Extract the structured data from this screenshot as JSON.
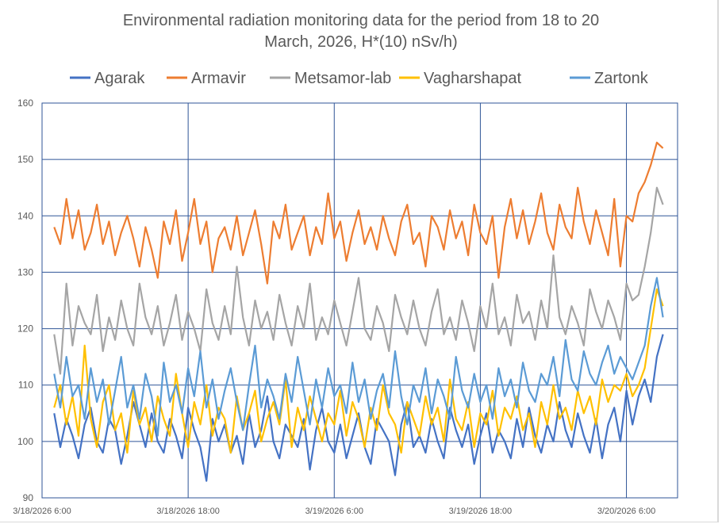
{
  "chart_data": {
    "type": "line",
    "title": "Environmental radiation monitoring data for the period from 18 to 20",
    "title_line2": "March, 2026, H*(10) nSv/h)",
    "xlabel": "",
    "ylabel": "",
    "ylim": [
      90,
      160
    ],
    "yticks": [
      "90",
      "100",
      "110",
      "120",
      "130",
      "140",
      "150",
      "160"
    ],
    "xticks": [
      "3/18/2026 6:00",
      "3/18/2026 18:00",
      "3/19/2026 6:00",
      "3/19/2026 18:00",
      "3/20/2026 6:00"
    ],
    "xtick_hours": [
      0,
      12,
      24,
      36,
      48
    ],
    "x_range_hours": [
      0,
      52.2
    ],
    "x_start_hour": 1,
    "interval_hours": 0.5,
    "grid": true,
    "legend_position": "top",
    "series": [
      {
        "name": "Agarak",
        "color": "#4472C4",
        "values": [
          105,
          99,
          104,
          101,
          97,
          103,
          106,
          100,
          98,
          104,
          102,
          96,
          101,
          107,
          103,
          99,
          105,
          100,
          98,
          104,
          101,
          97,
          106,
          102,
          99,
          93,
          104,
          100,
          103,
          98,
          101,
          96,
          105,
          99,
          102,
          108,
          100,
          97,
          103,
          101,
          99,
          104,
          95,
          102,
          106,
          100,
          98,
          103,
          97,
          101,
          105,
          99,
          96,
          104,
          102,
          100,
          94,
          103,
          107,
          99,
          101,
          98,
          104,
          100,
          97,
          106,
          102,
          99,
          103,
          96,
          101,
          105,
          98,
          102,
          100,
          97,
          104,
          99,
          106,
          101,
          98,
          103,
          100,
          107,
          102,
          99,
          105,
          101,
          98,
          104,
          97,
          103,
          106,
          100,
          109,
          103,
          108,
          111,
          107,
          115,
          119
        ]
      },
      {
        "name": "Armavir",
        "color": "#ED7D31",
        "values": [
          138,
          135,
          143,
          136,
          141,
          134,
          137,
          142,
          135,
          139,
          133,
          137,
          140,
          136,
          131,
          138,
          134,
          129,
          139,
          135,
          141,
          132,
          137,
          143,
          135,
          139,
          130,
          136,
          138,
          134,
          140,
          133,
          137,
          141,
          135,
          128,
          139,
          136,
          142,
          134,
          137,
          140,
          133,
          138,
          135,
          144,
          136,
          139,
          132,
          137,
          141,
          135,
          138,
          134,
          140,
          136,
          133,
          139,
          142,
          135,
          137,
          131,
          140,
          138,
          134,
          141,
          136,
          139,
          133,
          142,
          137,
          135,
          140,
          129,
          138,
          143,
          136,
          141,
          135,
          139,
          144,
          137,
          134,
          142,
          138,
          136,
          145,
          139,
          135,
          141,
          137,
          133,
          143,
          131,
          140,
          139,
          144,
          146,
          149,
          153,
          152
        ]
      },
      {
        "name": "Metsamor-lab",
        "color": "#A5A5A5",
        "values": [
          119,
          112,
          128,
          117,
          124,
          121,
          119,
          126,
          116,
          122,
          118,
          125,
          120,
          117,
          128,
          122,
          119,
          124,
          117,
          121,
          126,
          118,
          123,
          120,
          116,
          127,
          121,
          118,
          124,
          119,
          131,
          122,
          117,
          125,
          120,
          123,
          118,
          126,
          121,
          117,
          124,
          120,
          128,
          118,
          122,
          119,
          125,
          121,
          117,
          123,
          129,
          120,
          118,
          124,
          121,
          116,
          126,
          122,
          119,
          125,
          120,
          117,
          123,
          127,
          119,
          122,
          118,
          125,
          121,
          116,
          124,
          120,
          128,
          119,
          122,
          117,
          126,
          121,
          123,
          118,
          125,
          120,
          133,
          122,
          119,
          124,
          121,
          117,
          127,
          123,
          120,
          125,
          122,
          118,
          128,
          125,
          126,
          131,
          137,
          145,
          142
        ]
      },
      {
        "name": "Vagharshapat",
        "color": "#FFC000",
        "values": [
          106,
          110,
          103,
          108,
          101,
          117,
          104,
          99,
          107,
          110,
          102,
          105,
          98,
          109,
          103,
          106,
          100,
          108,
          104,
          101,
          112,
          105,
          99,
          107,
          103,
          110,
          101,
          106,
          104,
          98,
          108,
          102,
          105,
          109,
          100,
          104,
          107,
          103,
          111,
          99,
          106,
          102,
          108,
          104,
          100,
          105,
          103,
          109,
          101,
          107,
          104,
          99,
          106,
          102,
          110,
          105,
          103,
          98,
          107,
          104,
          101,
          108,
          103,
          106,
          100,
          111,
          104,
          102,
          107,
          99,
          105,
          103,
          109,
          101,
          106,
          104,
          108,
          102,
          105,
          99,
          107,
          103,
          110,
          104,
          106,
          102,
          109,
          105,
          108,
          103,
          111,
          107,
          110,
          109,
          112,
          108,
          110,
          113,
          120,
          127,
          124
        ]
      },
      {
        "name": "Zartonk",
        "color": "#5B9BD5",
        "values": [
          112,
          106,
          115,
          108,
          110,
          104,
          113,
          107,
          111,
          103,
          109,
          115,
          106,
          110,
          104,
          112,
          108,
          101,
          114,
          107,
          110,
          105,
          113,
          108,
          116,
          106,
          111,
          104,
          109,
          113,
          107,
          102,
          110,
          117,
          106,
          111,
          108,
          104,
          112,
          107,
          115,
          109,
          103,
          111,
          106,
          113,
          108,
          110,
          105,
          114,
          107,
          111,
          104,
          109,
          112,
          106,
          116,
          108,
          103,
          110,
          107,
          113,
          105,
          111,
          108,
          104,
          115,
          109,
          106,
          112,
          107,
          110,
          104,
          113,
          108,
          111,
          106,
          114,
          109,
          107,
          112,
          110,
          115,
          108,
          118,
          111,
          109,
          116,
          112,
          110,
          114,
          117,
          112,
          115,
          113,
          111,
          114,
          117,
          124,
          129,
          122
        ]
      }
    ],
    "grid_color": "#2F5597"
  }
}
